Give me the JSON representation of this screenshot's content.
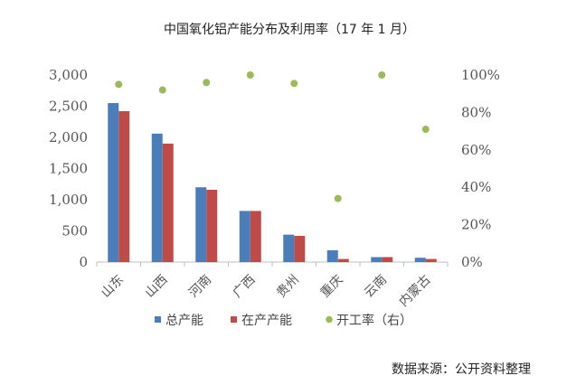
{
  "chart_data": {
    "type": "bar",
    "title": "中国氧化铝产能分布及利用率（17 年 1 月）",
    "categories": [
      "山东",
      "山西",
      "河南",
      "广西",
      "贵州",
      "重庆",
      "云南",
      "内蒙古"
    ],
    "series": [
      {
        "name": "总产能",
        "type": "bar",
        "axis": "left",
        "color": "#4a7ebb",
        "values": [
          2550,
          2060,
          1200,
          820,
          440,
          190,
          80,
          70
        ]
      },
      {
        "name": "在产产能",
        "type": "bar",
        "axis": "left",
        "color": "#be4b48",
        "values": [
          2420,
          1900,
          1160,
          820,
          420,
          50,
          80,
          50
        ]
      },
      {
        "name": "开工率（右）",
        "type": "scatter",
        "axis": "right",
        "color": "#9bbb59",
        "values": [
          0.95,
          0.92,
          0.96,
          1.0,
          0.955,
          0.34,
          1.0,
          0.71
        ]
      }
    ],
    "y_left": {
      "min": 0,
      "max": 3000,
      "step": 500,
      "ticks": [
        "0",
        "500",
        "1,000",
        "1,500",
        "2,000",
        "2,500",
        "3,000"
      ]
    },
    "y_right": {
      "min": 0,
      "max": 1.0,
      "step": 0.2,
      "ticks": [
        "0%",
        "20%",
        "40%",
        "60%",
        "80%",
        "100%"
      ]
    },
    "grid": false,
    "legend_position": "bottom",
    "source_note": "数据来源：公开资料整理"
  }
}
